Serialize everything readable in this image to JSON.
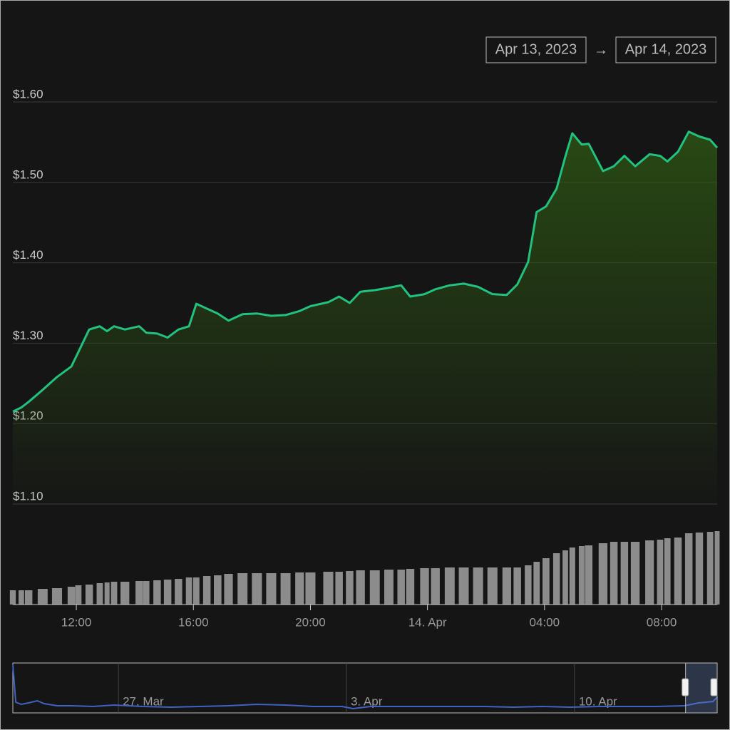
{
  "chart_data": [
    {
      "type": "area",
      "x": [
        9.83,
        10.12,
        10.37,
        10.85,
        11.34,
        11.83,
        12.07,
        12.44,
        12.8,
        13.05,
        13.29,
        13.66,
        14.15,
        14.39,
        14.76,
        15.12,
        15.49,
        15.85,
        16.1,
        16.46,
        16.83,
        17.2,
        17.68,
        18.17,
        18.66,
        19.15,
        19.63,
        20.0,
        20.61,
        20.98,
        21.34,
        21.71,
        22.2,
        22.68,
        23.1,
        23.41,
        23.9,
        24.27,
        24.76,
        25.24,
        25.73,
        26.22,
        26.71,
        27.07,
        27.44,
        27.73,
        28.05,
        28.41,
        28.71,
        28.95,
        29.27,
        29.51,
        30.0,
        30.37,
        30.73,
        31.1,
        31.59,
        31.95,
        32.2,
        32.56,
        32.93,
        33.29,
        33.66,
        33.9
      ],
      "values": [
        1.215,
        1.22,
        1.227,
        1.242,
        1.258,
        1.271,
        1.289,
        1.317,
        1.321,
        1.315,
        1.321,
        1.317,
        1.321,
        1.313,
        1.312,
        1.307,
        1.317,
        1.321,
        1.349,
        1.343,
        1.337,
        1.328,
        1.336,
        1.337,
        1.334,
        1.335,
        1.34,
        1.346,
        1.351,
        1.358,
        1.35,
        1.364,
        1.366,
        1.369,
        1.372,
        1.358,
        1.361,
        1.367,
        1.372,
        1.374,
        1.37,
        1.361,
        1.36,
        1.373,
        1.401,
        1.463,
        1.47,
        1.492,
        1.532,
        1.561,
        1.547,
        1.548,
        1.514,
        1.52,
        1.533,
        1.52,
        1.535,
        1.533,
        1.526,
        1.538,
        1.563,
        1.557,
        1.553,
        1.543
      ],
      "volume": [
        20,
        20,
        20,
        22,
        23,
        25,
        27,
        28,
        30,
        31,
        32,
        32,
        33,
        33,
        34,
        35,
        36,
        38,
        38,
        40,
        41,
        43,
        44,
        44,
        44,
        44,
        45,
        45,
        46,
        46,
        47,
        48,
        48,
        49,
        49,
        50,
        51,
        51,
        52,
        52,
        52,
        52,
        52,
        52,
        55,
        60,
        65,
        72,
        76,
        80,
        82,
        83,
        86,
        88,
        88,
        88,
        90,
        91,
        93,
        94,
        100,
        101,
        102,
        103
      ],
      "volume_lim": [
        0,
        105
      ],
      "color": "#22c17f",
      "volume_color": "#8c8c8c",
      "xlim": [
        9.83,
        33.9
      ],
      "xticks": [
        {
          "value": 12,
          "label": "12:00"
        },
        {
          "value": 16,
          "label": "16:00"
        },
        {
          "value": 20,
          "label": "20:00"
        },
        {
          "value": 24,
          "label": "14. Apr"
        },
        {
          "value": 28,
          "label": "04:00"
        },
        {
          "value": 32,
          "label": "08:00"
        }
      ],
      "ylim": [
        1.1,
        1.6
      ],
      "yticks": [
        {
          "value": 1.6,
          "label": "$1.60"
        },
        {
          "value": 1.5,
          "label": "$1.50"
        },
        {
          "value": 1.4,
          "label": "$1.40"
        },
        {
          "value": 1.3,
          "label": "$1.30"
        },
        {
          "value": 1.2,
          "label": "$1.20"
        },
        {
          "value": 1.1,
          "label": "$1.10"
        }
      ],
      "grid": true
    },
    {
      "type": "navigator",
      "x": [
        -3.24,
        -3.15,
        -2.98,
        -2.76,
        -2.49,
        -2.28,
        -1.88,
        -1.44,
        -0.79,
        -0.13,
        0.74,
        1.62,
        2.49,
        3.37,
        4.24,
        5.12,
        5.99,
        6.87,
        7.2,
        7.74,
        8.62,
        9.49,
        10.37,
        11.24,
        12.12,
        13.0,
        13.87,
        14.75,
        15.62,
        16.5,
        17.37,
        17.81,
        18.25,
        18.38
      ],
      "values": [
        68,
        15,
        12,
        14,
        17,
        13,
        10,
        10,
        9,
        11,
        9,
        8,
        9,
        10,
        12,
        11,
        9,
        9,
        6,
        9,
        9,
        9,
        9,
        9,
        8,
        9,
        8,
        9,
        9,
        9,
        10,
        14,
        16,
        22
      ],
      "color": "#3f62c4",
      "xlim": [
        -3.24,
        18.38
      ],
      "ylim": [
        0,
        70
      ],
      "xticks": [
        {
          "value": 0,
          "label": "27. Mar"
        },
        {
          "value": 7,
          "label": "3. Apr"
        },
        {
          "value": 14,
          "label": "10. Apr"
        }
      ],
      "selection": [
        17.41,
        18.38
      ]
    }
  ],
  "range_selector": {
    "from": "Apr 13, 2023",
    "separator": "→",
    "to": "Apr 14, 2023"
  }
}
